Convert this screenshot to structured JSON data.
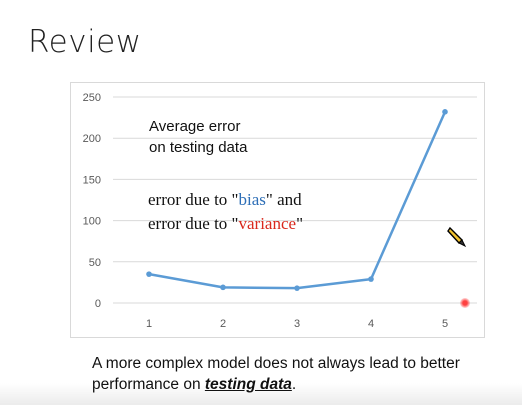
{
  "slide": {
    "title": "Review",
    "annotation_line1": "Average error",
    "annotation_line2": "on testing data",
    "bias_line_prefix": "error due to \"",
    "bias_word": "bias",
    "bias_line_suffix": "\" and",
    "variance_line_prefix": "error due to \"",
    "variance_word": "variance",
    "variance_line_suffix": "\"",
    "bottom_text_start": "A more complex model does not always lead to better performance on ",
    "bottom_text_emphasis": "testing data",
    "bottom_text_end": "."
  },
  "colors": {
    "line": "#5b9bd5",
    "bias": "#2e6fb7",
    "variance": "#d9281c"
  },
  "chart_data": {
    "type": "line",
    "x": [
      1,
      2,
      3,
      4,
      5
    ],
    "categories": [
      "1",
      "2",
      "3",
      "4",
      "5"
    ],
    "series": [
      {
        "values": [
          35,
          19,
          18,
          29,
          232
        ]
      }
    ],
    "ylim": [
      0,
      250
    ],
    "yticks": [
      0,
      50,
      100,
      150,
      200,
      250
    ],
    "grid": true,
    "title": "",
    "xlabel": "",
    "ylabel": ""
  },
  "icons": {
    "pen": "pen-cursor-icon",
    "laser": "laser-pointer-icon"
  }
}
